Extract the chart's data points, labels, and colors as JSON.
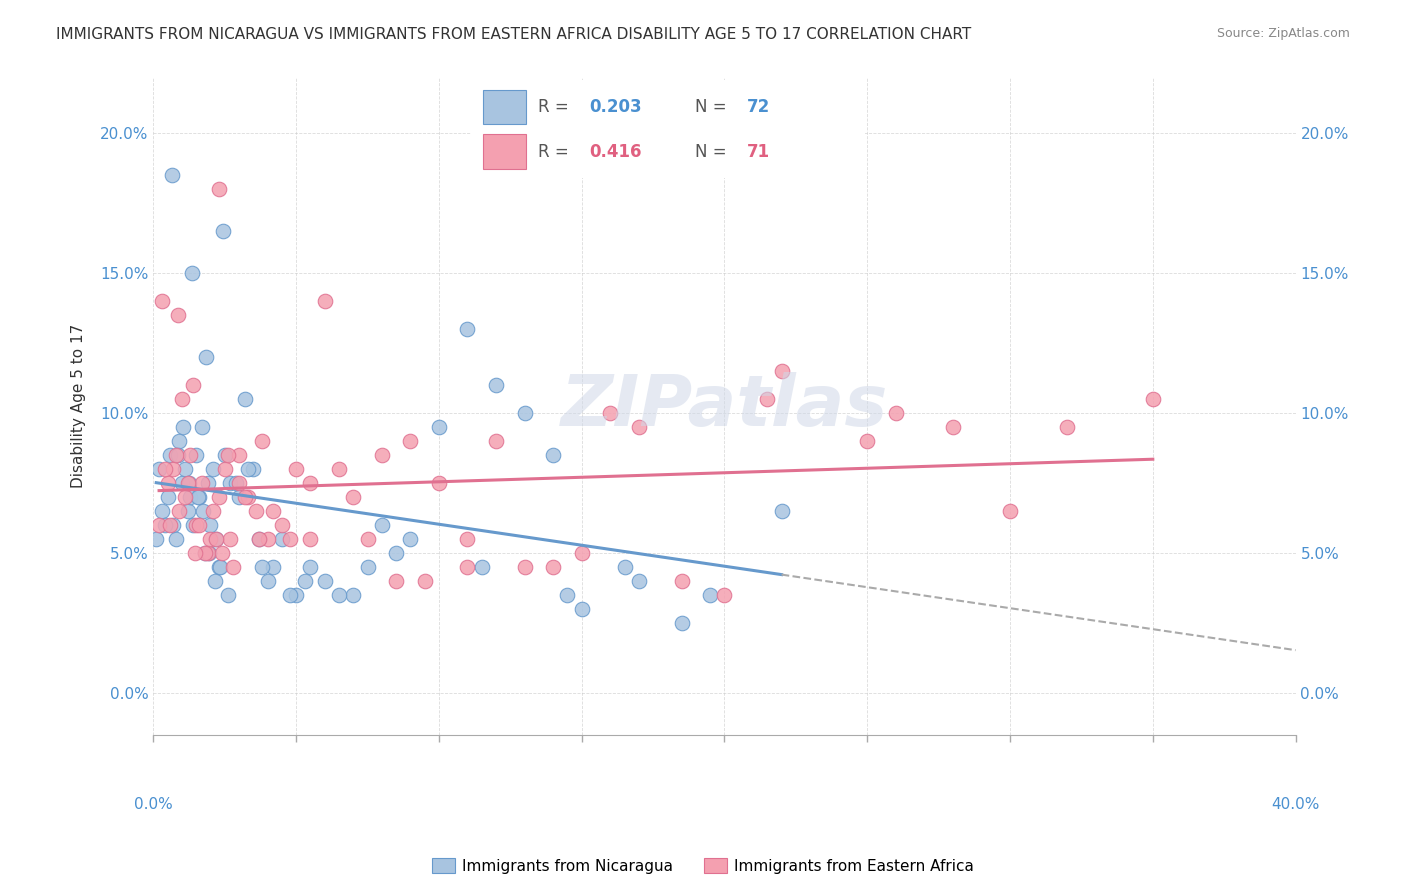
{
  "title": "IMMIGRANTS FROM NICARAGUA VS IMMIGRANTS FROM EASTERN AFRICA DISABILITY AGE 5 TO 17 CORRELATION CHART",
  "source": "Source: ZipAtlas.com",
  "ylabel": "Disability Age 5 to 17",
  "ytick_labels": [
    "0.0%",
    "5.0%",
    "10.0%",
    "15.0%",
    "20.0%"
  ],
  "ytick_values": [
    0.0,
    5.0,
    10.0,
    15.0,
    20.0
  ],
  "xlim": [
    0.0,
    40.0
  ],
  "ylim": [
    -1.5,
    22.0
  ],
  "color_blue": "#a8c4e0",
  "color_pink": "#f4a0b0",
  "color_blue_text": "#4a90d0",
  "color_pink_text": "#e06080",
  "color_line_blue": "#6699cc",
  "color_line_pink": "#e07090",
  "color_line_dashed": "#aaaaaa",
  "watermark": "ZIPatlas",
  "nicaragua_x": [
    0.3,
    0.5,
    0.6,
    0.7,
    0.8,
    0.9,
    1.0,
    1.1,
    1.2,
    1.3,
    1.4,
    1.5,
    1.6,
    1.7,
    1.8,
    1.9,
    2.0,
    2.1,
    2.2,
    2.3,
    2.5,
    2.7,
    3.0,
    3.2,
    3.5,
    4.0,
    4.5,
    5.0,
    5.5,
    6.0,
    7.0,
    7.5,
    8.0,
    9.0,
    10.0,
    11.0,
    12.0,
    13.0,
    14.0,
    15.0,
    16.5,
    18.5,
    0.1,
    0.2,
    0.4,
    0.85,
    1.05,
    1.25,
    1.55,
    1.75,
    1.95,
    2.15,
    2.35,
    2.6,
    2.9,
    3.3,
    3.7,
    4.2,
    4.8,
    5.3,
    6.5,
    8.5,
    11.5,
    14.5,
    17.0,
    19.5,
    22.0,
    0.65,
    1.35,
    1.85,
    2.45,
    3.8
  ],
  "nicaragua_y": [
    6.5,
    7.0,
    8.5,
    6.0,
    5.5,
    9.0,
    7.5,
    8.0,
    6.5,
    7.0,
    6.0,
    8.5,
    7.0,
    9.5,
    5.0,
    7.5,
    6.0,
    8.0,
    5.5,
    4.5,
    8.5,
    7.5,
    7.0,
    10.5,
    8.0,
    4.0,
    5.5,
    3.5,
    4.5,
    4.0,
    3.5,
    4.5,
    6.0,
    5.5,
    9.5,
    13.0,
    11.0,
    10.0,
    8.5,
    3.0,
    4.5,
    2.5,
    5.5,
    8.0,
    6.0,
    8.5,
    9.5,
    7.5,
    7.0,
    6.5,
    5.0,
    4.0,
    4.5,
    3.5,
    7.5,
    8.0,
    5.5,
    4.5,
    3.5,
    4.0,
    3.5,
    5.0,
    4.5,
    3.5,
    4.0,
    3.5,
    6.5,
    18.5,
    15.0,
    12.0,
    16.5,
    4.5
  ],
  "eastern_africa_x": [
    0.2,
    0.5,
    0.7,
    0.9,
    1.1,
    1.3,
    1.5,
    1.7,
    1.9,
    2.1,
    2.3,
    2.5,
    2.7,
    3.0,
    3.3,
    3.6,
    4.0,
    4.5,
    5.0,
    5.5,
    6.0,
    7.0,
    8.0,
    9.0,
    10.0,
    11.0,
    13.0,
    15.0,
    17.0,
    20.0,
    25.0,
    30.0,
    0.4,
    0.8,
    1.2,
    1.6,
    2.0,
    2.4,
    2.8,
    3.2,
    3.7,
    4.2,
    5.5,
    7.5,
    9.5,
    12.0,
    16.0,
    22.0,
    28.0,
    35.0,
    1.0,
    1.8,
    2.6,
    0.6,
    1.4,
    2.2,
    3.0,
    3.8,
    4.8,
    6.5,
    8.5,
    11.0,
    14.0,
    18.5,
    21.5,
    26.0,
    32.0,
    0.3,
    0.85,
    1.45,
    2.3
  ],
  "eastern_africa_y": [
    6.0,
    7.5,
    8.0,
    6.5,
    7.0,
    8.5,
    6.0,
    7.5,
    5.0,
    6.5,
    7.0,
    8.0,
    5.5,
    8.5,
    7.0,
    6.5,
    5.5,
    6.0,
    8.0,
    5.5,
    14.0,
    7.0,
    8.5,
    9.0,
    7.5,
    5.5,
    4.5,
    5.0,
    9.5,
    3.5,
    9.0,
    6.5,
    8.0,
    8.5,
    7.5,
    6.0,
    5.5,
    5.0,
    4.5,
    7.0,
    5.5,
    6.5,
    7.5,
    5.5,
    4.0,
    9.0,
    10.0,
    11.5,
    9.5,
    10.5,
    10.5,
    5.0,
    8.5,
    6.0,
    11.0,
    5.5,
    7.5,
    9.0,
    5.5,
    8.0,
    4.0,
    4.5,
    4.5,
    4.0,
    10.5,
    10.0,
    9.5,
    14.0,
    13.5,
    5.0,
    18.0
  ]
}
